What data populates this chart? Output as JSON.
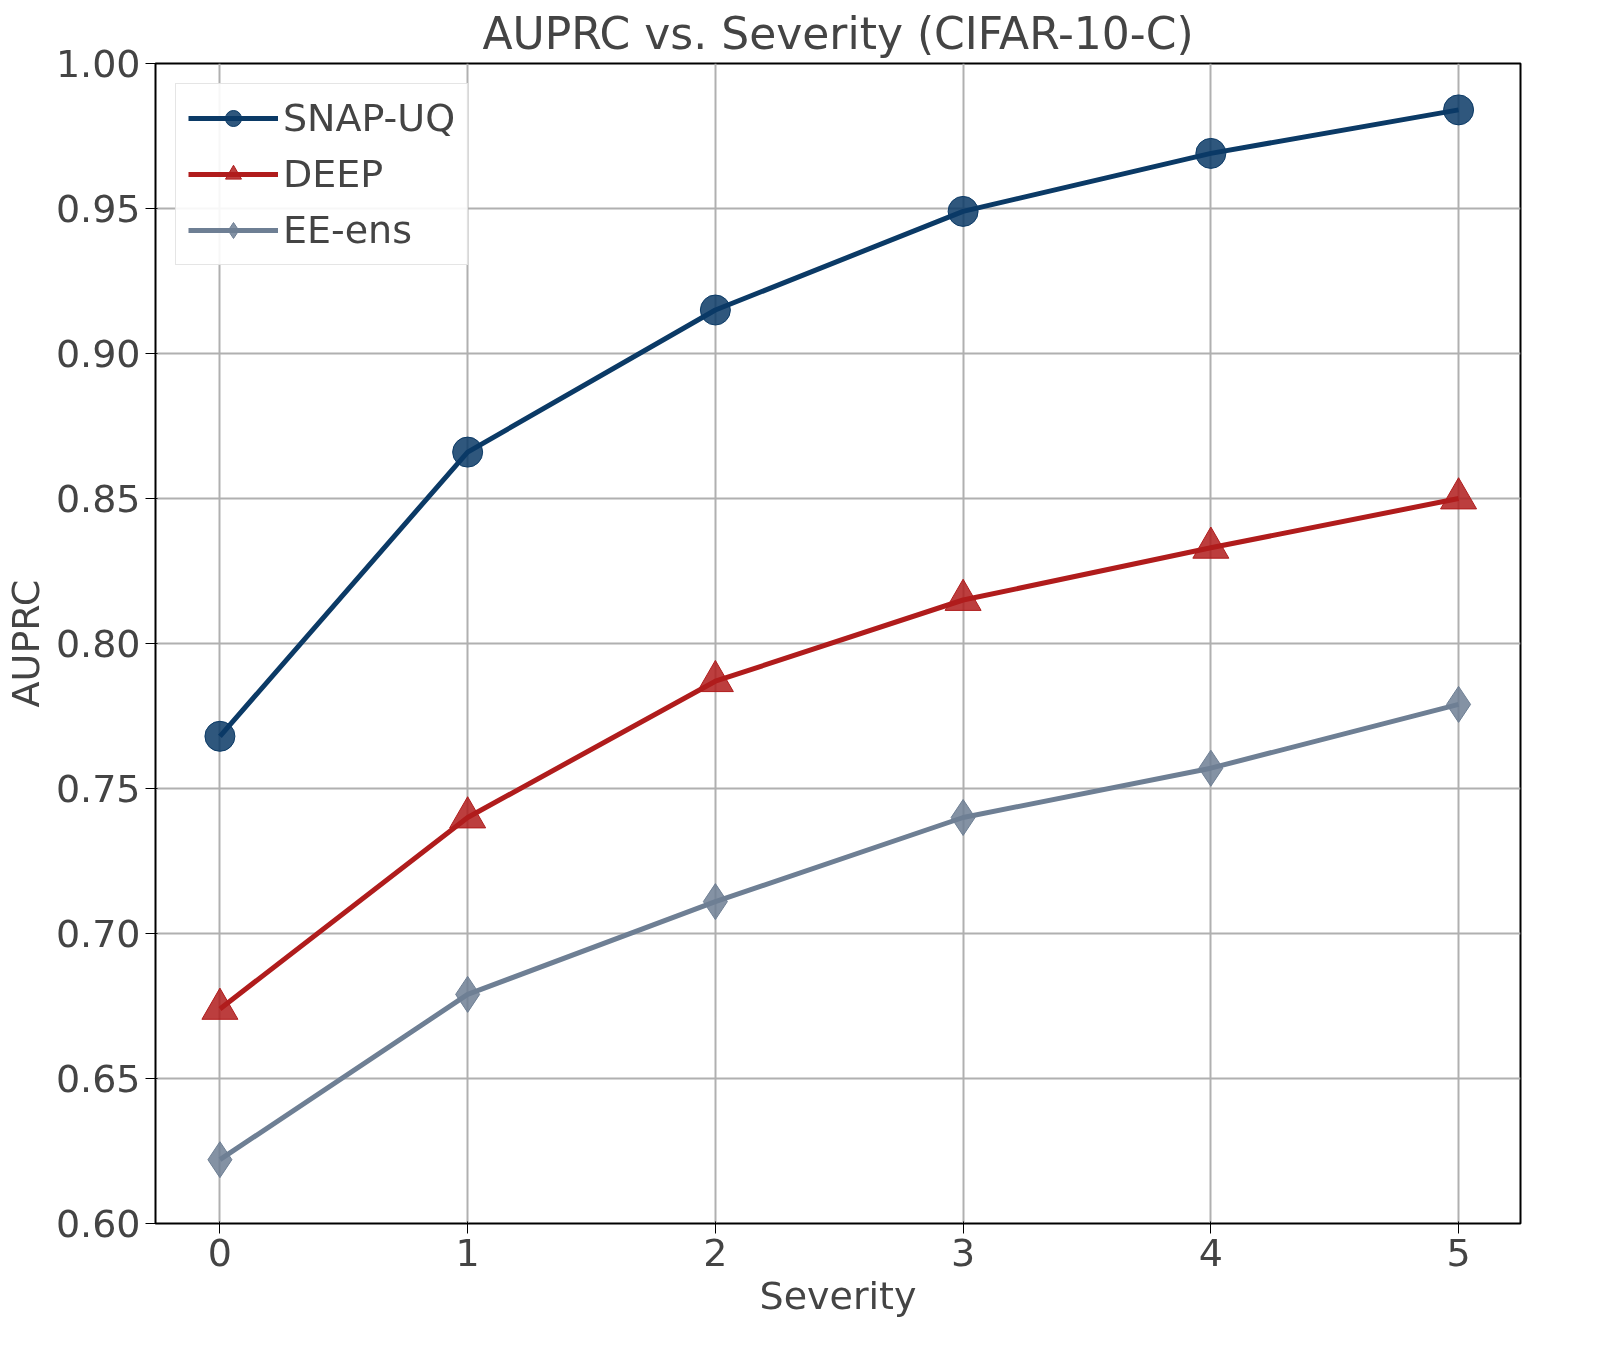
{
  "chart_data": {
    "type": "line",
    "title": "AUPRC vs. Severity (CIFAR-10-C)",
    "xlabel": "Severity",
    "ylabel": "AUPRC",
    "x": [
      0,
      1,
      2,
      3,
      4,
      5
    ],
    "series": [
      {
        "name": "SNAP-UQ",
        "color": "#0b3a66",
        "marker": "circle",
        "values": [
          0.768,
          0.866,
          0.915,
          0.949,
          0.969,
          0.984
        ]
      },
      {
        "name": "DEEP",
        "color": "#b01c1c",
        "marker": "triangle",
        "values": [
          0.674,
          0.74,
          0.787,
          0.815,
          0.833,
          0.85
        ]
      },
      {
        "name": "EE-ens",
        "color": "#6e7f94",
        "marker": "diamond",
        "values": [
          0.622,
          0.679,
          0.711,
          0.74,
          0.757,
          0.779
        ]
      }
    ],
    "xlim": [
      -0.26,
      5.25
    ],
    "xticks": [
      0,
      1,
      2,
      3,
      4,
      5
    ],
    "ylim": [
      0.6,
      1.0
    ],
    "yticks": [
      {
        "value": 0.6,
        "label": "0.60"
      },
      {
        "value": 0.65,
        "label": "0.65"
      },
      {
        "value": 0.7,
        "label": "0.70"
      },
      {
        "value": 0.75,
        "label": "0.75"
      },
      {
        "value": 0.8,
        "label": "0.80"
      },
      {
        "value": 0.85,
        "label": "0.85"
      },
      {
        "value": 0.9,
        "label": "0.90"
      },
      {
        "value": 0.95,
        "label": "0.95"
      },
      {
        "value": 1.0,
        "label": "1.00"
      }
    ],
    "grid": true,
    "legend": "top left",
    "line_style": "solid"
  }
}
